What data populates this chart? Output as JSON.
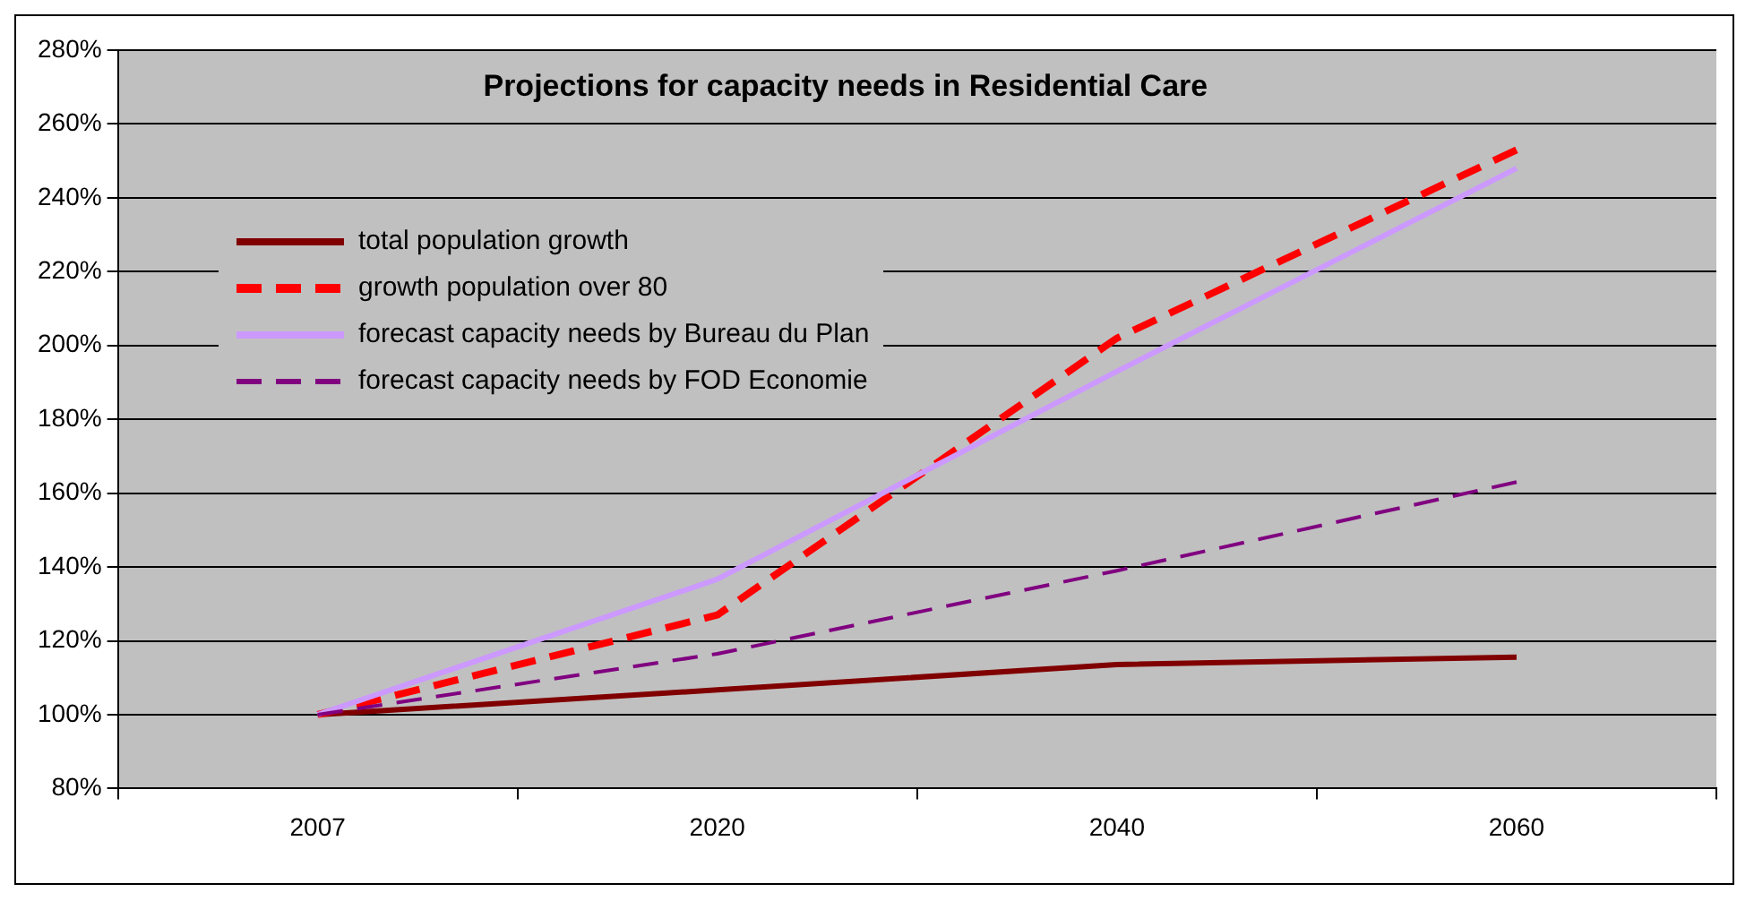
{
  "chart_data": {
    "type": "line",
    "title": "Projections for capacity needs in Residential Care",
    "categories": [
      "2007",
      "2020",
      "2040",
      "2060"
    ],
    "series": [
      {
        "name": "total population growth",
        "color": "#800000",
        "line_style": "solid",
        "values": [
          100,
          106.7,
          113.6,
          115.6
        ]
      },
      {
        "name": "growth population over 80",
        "color": "#ff0000",
        "line_style": "dashed",
        "values": [
          100,
          127,
          202,
          253
        ]
      },
      {
        "name": "forecast capacity needs by Bureau du Plan",
        "color": "#cc99ff",
        "line_style": "solid",
        "values": [
          100,
          136.7,
          193,
          248
        ]
      },
      {
        "name": "forecast capacity needs by FOD Economie",
        "color": "#800080",
        "line_style": "dashed",
        "values": [
          100,
          116.5,
          139,
          163
        ]
      }
    ],
    "ylim": [
      80,
      280
    ],
    "yticks": [
      {
        "value": 80,
        "label": "80%"
      },
      {
        "value": 100,
        "label": "100%"
      },
      {
        "value": 120,
        "label": "120%"
      },
      {
        "value": 140,
        "label": "140%"
      },
      {
        "value": 160,
        "label": "160%"
      },
      {
        "value": 180,
        "label": "180%"
      },
      {
        "value": 200,
        "label": "200%"
      },
      {
        "value": 220,
        "label": "220%"
      },
      {
        "value": 240,
        "label": "240%"
      },
      {
        "value": 260,
        "label": "260%"
      },
      {
        "value": 280,
        "label": "280%"
      }
    ],
    "grid": "y",
    "legend": "top left",
    "marker": "none"
  }
}
